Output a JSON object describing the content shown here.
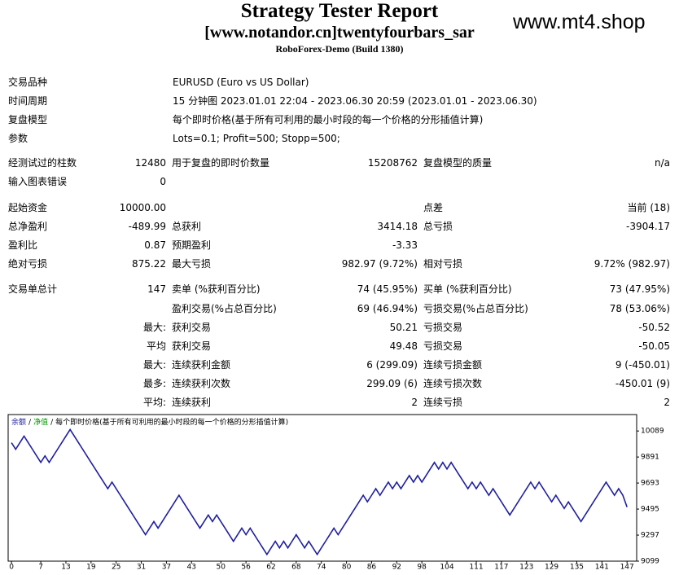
{
  "header": {
    "title": "Strategy Tester Report",
    "subtitle": "[www.notandor.cn]twentyfourbars_sar",
    "server": "RoboForex-Demo (Build 1380)",
    "watermark": "www.mt4.shop"
  },
  "info": [
    {
      "label": "交易品种",
      "value": "EURUSD (Euro vs US Dollar)"
    },
    {
      "label": "时间周期",
      "value": "15 分钟图 2023.01.01 22:04 - 2023.06.30 20:59 (2023.01.01 - 2023.06.30)"
    },
    {
      "label": "复盘模型",
      "value": "每个即时价格(基于所有可利用的最小时段的每一个价格的分形插值计算)"
    },
    {
      "label": "参数",
      "value": "Lots=0.1; Profit=500; Stopp=500;"
    }
  ],
  "stats": [
    [
      "经测试过的柱数",
      "12480",
      "用于复盘的即时价数量",
      "15208762",
      "复盘模型的质量",
      "n/a"
    ],
    [
      "输入图表错误",
      "0",
      null,
      null,
      null,
      null
    ],
    [
      "起始资金",
      "10000.00",
      null,
      null,
      "点差",
      "当前 (18)"
    ],
    [
      "总净盈利",
      "-489.99",
      "总获利",
      "3414.18",
      "总亏损",
      "-3904.17"
    ],
    [
      "盈利比",
      "0.87",
      "预期盈利",
      "-3.33",
      null,
      null
    ],
    [
      "绝对亏损",
      "875.22",
      "最大亏损",
      "982.97 (9.72%)",
      "相对亏损",
      "9.72% (982.97)"
    ],
    [
      "交易单总计",
      "147",
      "卖单 (%获利百分比)",
      "74 (45.95%)",
      "买单 (%获利百分比)",
      "73 (47.95%)"
    ],
    [
      null,
      null,
      "盈利交易(%占总百分比)",
      "69 (46.94%)",
      "亏损交易(%占总百分比)",
      "78 (53.06%)"
    ],
    [
      null,
      "最大:",
      "获利交易",
      "50.21",
      "亏损交易",
      "-50.52"
    ],
    [
      null,
      "平均",
      "获利交易",
      "49.48",
      "亏损交易",
      "-50.05"
    ],
    [
      null,
      "最大:",
      "连续获利金额",
      "6 (299.09)",
      "连续亏损金额",
      "9 (-450.01)"
    ],
    [
      null,
      "最多:",
      "连续获利次数",
      "299.09 (6)",
      "连续亏损次数",
      "-450.01 (9)"
    ],
    [
      null,
      "平均:",
      "连续获利",
      "2",
      "连续亏损",
      "2"
    ]
  ],
  "chart_data": {
    "type": "line",
    "separator": "/",
    "legend_notes": [
      {
        "text": "净值",
        "color": "#00a000"
      },
      {
        "text": "每个即时价格(基于所有可利用的最小时段的每一个价格的分形插值计算)",
        "color": "#000000"
      }
    ],
    "x": [
      0,
      1,
      2,
      3,
      4,
      5,
      6,
      7,
      8,
      9,
      10,
      11,
      12,
      13,
      14,
      15,
      16,
      17,
      18,
      19,
      20,
      21,
      22,
      23,
      24,
      25,
      26,
      27,
      28,
      29,
      30,
      31,
      32,
      33,
      34,
      35,
      36,
      37,
      38,
      39,
      40,
      41,
      42,
      43,
      44,
      45,
      46,
      47,
      48,
      49,
      50,
      51,
      52,
      53,
      54,
      55,
      56,
      57,
      58,
      59,
      60,
      61,
      62,
      63,
      64,
      65,
      66,
      67,
      68,
      69,
      70,
      71,
      72,
      73,
      74,
      75,
      76,
      77,
      78,
      79,
      80,
      81,
      82,
      83,
      84,
      85,
      86,
      87,
      88,
      89,
      90,
      91,
      92,
      93,
      94,
      95,
      96,
      97,
      98,
      99,
      100,
      101,
      102,
      103,
      104,
      105,
      106,
      107,
      108,
      109,
      110,
      111,
      112,
      113,
      114,
      115,
      116,
      117,
      118,
      119,
      120,
      121,
      122,
      123,
      124,
      125,
      126,
      127,
      128,
      129,
      130,
      131,
      132,
      133,
      134,
      135,
      136,
      137,
      138,
      139,
      140,
      141,
      142,
      143,
      144,
      145,
      146,
      147
    ],
    "series": [
      {
        "name": "余额",
        "color": "#1f1f9f",
        "values": [
          10000,
          9950,
          10000,
          10050,
          10000,
          9950,
          9900,
          9850,
          9900,
          9850,
          9900,
          9950,
          10000,
          10050,
          10100,
          10050,
          10000,
          9950,
          9900,
          9850,
          9800,
          9750,
          9700,
          9650,
          9700,
          9650,
          9600,
          9550,
          9500,
          9450,
          9400,
          9350,
          9300,
          9350,
          9400,
          9350,
          9400,
          9450,
          9500,
          9550,
          9600,
          9550,
          9500,
          9450,
          9400,
          9350,
          9400,
          9450,
          9400,
          9450,
          9400,
          9350,
          9300,
          9250,
          9300,
          9350,
          9300,
          9350,
          9300,
          9250,
          9200,
          9150,
          9200,
          9250,
          9200,
          9250,
          9200,
          9250,
          9300,
          9250,
          9200,
          9250,
          9200,
          9150,
          9200,
          9250,
          9300,
          9350,
          9300,
          9350,
          9400,
          9450,
          9500,
          9550,
          9600,
          9550,
          9600,
          9650,
          9600,
          9650,
          9700,
          9650,
          9700,
          9650,
          9700,
          9750,
          9700,
          9750,
          9700,
          9750,
          9800,
          9850,
          9800,
          9850,
          9800,
          9850,
          9800,
          9750,
          9700,
          9650,
          9700,
          9650,
          9700,
          9650,
          9600,
          9650,
          9600,
          9550,
          9500,
          9450,
          9500,
          9550,
          9600,
          9650,
          9700,
          9650,
          9700,
          9650,
          9600,
          9550,
          9600,
          9550,
          9500,
          9550,
          9500,
          9450,
          9400,
          9450,
          9500,
          9550,
          9600,
          9650,
          9700,
          9650,
          9600,
          9650,
          9600,
          9510.01
        ]
      }
    ],
    "xlim": [
      -0.8,
      149.3
    ],
    "xticks": [
      0,
      7,
      13,
      19,
      25,
      31,
      37,
      43,
      50,
      56,
      62,
      68,
      74,
      80,
      86,
      92,
      98,
      104,
      111,
      117,
      123,
      129,
      135,
      141,
      147
    ],
    "ylim": [
      9099,
      10214
    ],
    "yticks": [
      9099,
      9297,
      9495,
      9693,
      9891,
      10089
    ],
    "grid": false
  }
}
